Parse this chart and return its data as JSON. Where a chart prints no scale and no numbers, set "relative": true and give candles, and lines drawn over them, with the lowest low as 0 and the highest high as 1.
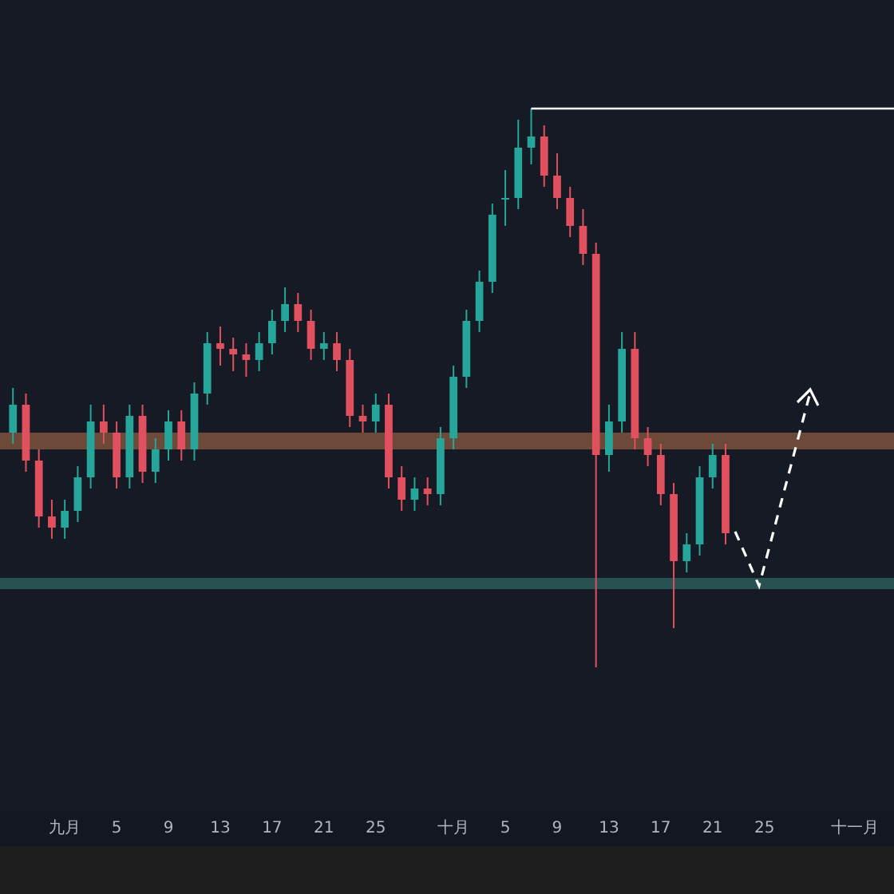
{
  "chart_data": {
    "type": "candlestick",
    "relative": true,
    "colors": [
      "#26a69a",
      "#e0505f",
      "#e0505f",
      "#e0505f",
      "#26a69a",
      "#26a69a",
      "#26a69a",
      "#e0505f",
      "#e0505f",
      "#26a69a",
      "#e0505f",
      "#26a69a",
      "#26a69a",
      "#e0505f",
      "#26a69a",
      "#26a69a",
      "#e0505f",
      "#e0505f",
      "#e0505f",
      "#26a69a",
      "#26a69a",
      "#26a69a",
      "#e0505f",
      "#e0505f",
      "#26a69a",
      "#e0505f",
      "#e0505f",
      "#e0505f",
      "#26a69a",
      "#e0505f",
      "#e0505f",
      "#26a69a",
      "#e0505f",
      "#26a69a",
      "#26a69a",
      "#26a69a",
      "#26a69a",
      "#26a69a",
      "#26a69a",
      "#26a69a",
      "#26a69a",
      "#e0505f",
      "#e0505f",
      "#e0505f",
      "#e0505f",
      "#e0505f",
      "#26a69a",
      "#26a69a",
      "#e0505f",
      "#e0505f",
      "#e0505f",
      "#e0505f",
      "#26a69a",
      "#26a69a",
      "#26a69a",
      "#e0505f"
    ],
    "x": [
      "--08-28",
      "--08-29",
      "--08-30",
      "--08-31",
      "--09-01",
      "--09-02",
      "--09-03",
      "--09-04",
      "--09-05",
      "--09-06",
      "--09-07",
      "--09-08",
      "--09-09",
      "--09-10",
      "--09-11",
      "--09-12",
      "--09-13",
      "--09-14",
      "--09-15",
      "--09-16",
      "--09-17",
      "--09-18",
      "--09-19",
      "--09-20",
      "--09-21",
      "--09-22",
      "--09-23",
      "--09-24",
      "--09-25",
      "--09-26",
      "--09-27",
      "--09-28",
      "--09-29",
      "--09-30",
      "--10-01",
      "--10-02",
      "--10-03",
      "--10-04",
      "--10-05",
      "--10-06",
      "--10-07",
      "--10-08",
      "--10-09",
      "--10-10",
      "--10-11",
      "--10-12",
      "--10-13",
      "--10-14",
      "--10-15",
      "--10-16",
      "--10-17",
      "--10-18",
      "--10-19",
      "--10-20",
      "--10-21",
      "--10-22"
    ],
    "ohlc": [
      [
        0.42,
        0.5,
        0.4,
        0.47
      ],
      [
        0.47,
        0.49,
        0.35,
        0.37
      ],
      [
        0.37,
        0.39,
        0.25,
        0.27
      ],
      [
        0.27,
        0.3,
        0.23,
        0.25
      ],
      [
        0.25,
        0.3,
        0.23,
        0.28
      ],
      [
        0.28,
        0.36,
        0.26,
        0.34
      ],
      [
        0.34,
        0.47,
        0.32,
        0.44
      ],
      [
        0.44,
        0.47,
        0.4,
        0.42
      ],
      [
        0.42,
        0.44,
        0.32,
        0.34
      ],
      [
        0.34,
        0.47,
        0.32,
        0.45
      ],
      [
        0.45,
        0.47,
        0.33,
        0.35
      ],
      [
        0.35,
        0.41,
        0.33,
        0.39
      ],
      [
        0.39,
        0.46,
        0.37,
        0.44
      ],
      [
        0.44,
        0.46,
        0.37,
        0.39
      ],
      [
        0.39,
        0.51,
        0.37,
        0.49
      ],
      [
        0.49,
        0.6,
        0.47,
        0.58
      ],
      [
        0.58,
        0.61,
        0.54,
        0.57
      ],
      [
        0.57,
        0.59,
        0.53,
        0.56
      ],
      [
        0.56,
        0.58,
        0.52,
        0.55
      ],
      [
        0.55,
        0.6,
        0.53,
        0.58
      ],
      [
        0.58,
        0.64,
        0.56,
        0.62
      ],
      [
        0.62,
        0.68,
        0.6,
        0.65
      ],
      [
        0.65,
        0.67,
        0.6,
        0.62
      ],
      [
        0.62,
        0.64,
        0.55,
        0.57
      ],
      [
        0.57,
        0.6,
        0.55,
        0.58
      ],
      [
        0.58,
        0.6,
        0.53,
        0.55
      ],
      [
        0.55,
        0.57,
        0.43,
        0.45
      ],
      [
        0.45,
        0.47,
        0.42,
        0.44
      ],
      [
        0.44,
        0.49,
        0.42,
        0.47
      ],
      [
        0.47,
        0.49,
        0.32,
        0.34
      ],
      [
        0.34,
        0.36,
        0.28,
        0.3
      ],
      [
        0.3,
        0.34,
        0.28,
        0.32
      ],
      [
        0.32,
        0.34,
        0.29,
        0.31
      ],
      [
        0.31,
        0.43,
        0.29,
        0.41
      ],
      [
        0.41,
        0.54,
        0.39,
        0.52
      ],
      [
        0.52,
        0.64,
        0.5,
        0.62
      ],
      [
        0.62,
        0.71,
        0.6,
        0.69
      ],
      [
        0.69,
        0.83,
        0.67,
        0.81
      ],
      [
        0.84,
        0.89,
        0.79,
        0.84
      ],
      [
        0.84,
        0.98,
        0.82,
        0.93
      ],
      [
        0.93,
        1,
        0.9,
        0.95
      ],
      [
        0.95,
        0.97,
        0.86,
        0.88
      ],
      [
        0.88,
        0.92,
        0.82,
        0.84
      ],
      [
        0.84,
        0.86,
        0.77,
        0.79
      ],
      [
        0.79,
        0.82,
        0.72,
        0.74
      ],
      [
        0.74,
        0.76,
        0,
        0.38
      ],
      [
        0.38,
        0.47,
        0.35,
        0.44
      ],
      [
        0.44,
        0.6,
        0.42,
        0.57
      ],
      [
        0.57,
        0.6,
        0.39,
        0.41
      ],
      [
        0.41,
        0.43,
        0.36,
        0.38
      ],
      [
        0.38,
        0.4,
        0.29,
        0.31
      ],
      [
        0.31,
        0.33,
        0.07,
        0.19
      ],
      [
        0.19,
        0.24,
        0.17,
        0.22
      ],
      [
        0.22,
        0.36,
        0.2,
        0.34
      ],
      [
        0.34,
        0.4,
        0.32,
        0.38
      ],
      [
        0.38,
        0.4,
        0.22,
        0.24
      ]
    ],
    "xlim": [
      "--08-27",
      "--11-04"
    ],
    "xticks": [
      {
        "value": "--09-01",
        "label": "九月"
      },
      {
        "value": "--09-05",
        "label": "5"
      },
      {
        "value": "--09-09",
        "label": "9"
      },
      {
        "value": "--09-13",
        "label": "13"
      },
      {
        "value": "--09-17",
        "label": "17"
      },
      {
        "value": "--09-21",
        "label": "21"
      },
      {
        "value": "--09-25",
        "label": "25"
      },
      {
        "value": "--10-01",
        "label": "十月"
      },
      {
        "value": "--10-05",
        "label": "5"
      },
      {
        "value": "--10-09",
        "label": "9"
      },
      {
        "value": "--10-13",
        "label": "13"
      },
      {
        "value": "--10-17",
        "label": "17"
      },
      {
        "value": "--10-21",
        "label": "21"
      },
      {
        "value": "--10-25",
        "label": "25"
      },
      {
        "value": "--11-01",
        "label": "十一月"
      }
    ],
    "ref_lines": [
      {
        "axis": "y",
        "value": 1,
        "color": "#ffffff"
      }
    ],
    "bands": [
      {
        "axis": "y",
        "from": 0.39,
        "to": 0.42,
        "color": "#8a5a40"
      },
      {
        "axis": "y",
        "from": 0.14,
        "to": 0.16,
        "color": "#2e6660"
      }
    ]
  }
}
